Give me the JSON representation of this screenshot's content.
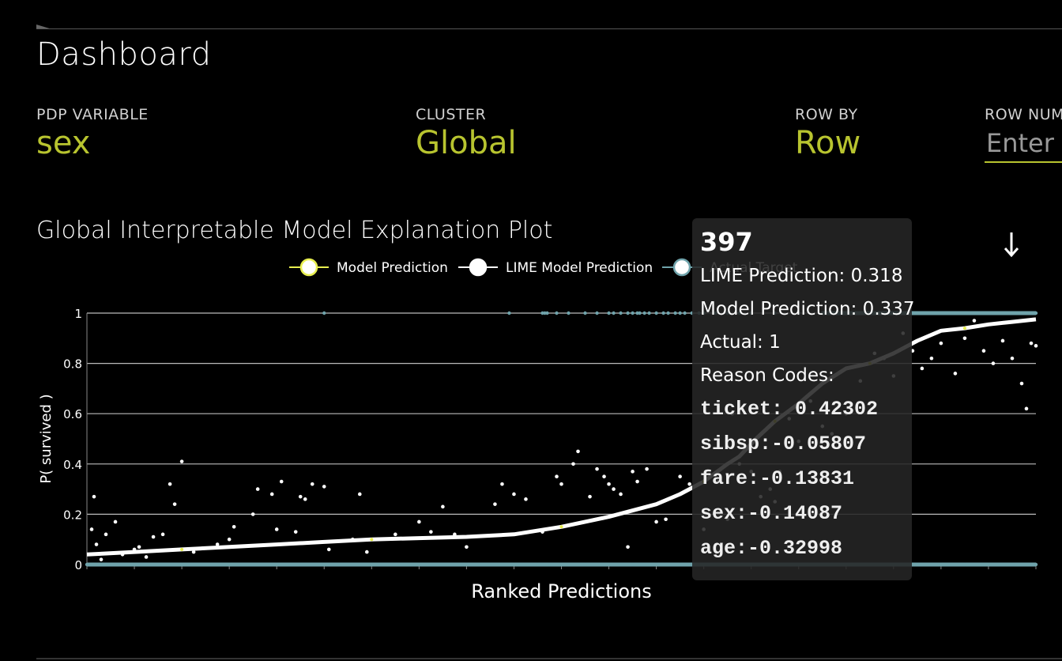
{
  "header": {
    "title": "Dashboard"
  },
  "controls": {
    "pdp_variable": {
      "label": "PDP VARIABLE",
      "value": "sex"
    },
    "cluster": {
      "label": "CLUSTER",
      "value": "Global"
    },
    "row_by": {
      "label": "ROW BY",
      "value": "Row"
    },
    "row_number": {
      "label": "ROW NUMBER",
      "placeholder": "Enter Row"
    }
  },
  "download_icon": "download-arrow-icon",
  "colors": {
    "accent": "#b8c42f",
    "model_prediction": "#e8ef4f",
    "lime_prediction": "#ffffff",
    "actual_target": "#6fa3ab",
    "grid": "#bbbbbb",
    "tooltip_bg": "#262626"
  },
  "tooltip": {
    "title": "397",
    "lime_prediction": "LIME Prediction: 0.318",
    "model_prediction": "Model Prediction: 0.337",
    "actual": "Actual: 1",
    "reason_codes_label": "Reason Codes:",
    "reason_codes": [
      "ticket: 0.42302",
      "sibsp:-0.05807",
      "fare:-0.13831",
      "sex:-0.14087",
      "age:-0.32998"
    ]
  },
  "chart_data": {
    "type": "scatter",
    "title": "Global Interpretable Model Explanation Plot",
    "xlabel": "Ranked Predictions",
    "ylabel": "P( survived )",
    "ylim": [
      0,
      1
    ],
    "yticks": [
      "0",
      "0.2",
      "0.4",
      "0.6",
      "0.8",
      "1"
    ],
    "grid": true,
    "legend_position": "top-center",
    "n_points": 400,
    "series": [
      {
        "name": "Model Prediction",
        "curve": [
          [
            0,
            0.04
          ],
          [
            20,
            0.05
          ],
          [
            40,
            0.06
          ],
          [
            60,
            0.07
          ],
          [
            80,
            0.08
          ],
          [
            100,
            0.09
          ],
          [
            120,
            0.1
          ],
          [
            140,
            0.105
          ],
          [
            160,
            0.11
          ],
          [
            180,
            0.12
          ],
          [
            200,
            0.15
          ],
          [
            220,
            0.19
          ],
          [
            240,
            0.24
          ],
          [
            250,
            0.28
          ],
          [
            260,
            0.33
          ],
          [
            270,
            0.4
          ],
          [
            275,
            0.43
          ],
          [
            282,
            0.5
          ],
          [
            290,
            0.57
          ],
          [
            300,
            0.64
          ],
          [
            310,
            0.72
          ],
          [
            320,
            0.78
          ],
          [
            330,
            0.8
          ],
          [
            340,
            0.84
          ],
          [
            350,
            0.89
          ],
          [
            360,
            0.93
          ],
          [
            370,
            0.94
          ],
          [
            380,
            0.955
          ],
          [
            390,
            0.965
          ],
          [
            400,
            0.975
          ]
        ]
      },
      {
        "name": "LIME Model Prediction",
        "scatter": [
          [
            2,
            0.14
          ],
          [
            3,
            0.27
          ],
          [
            4,
            0.08
          ],
          [
            6,
            0.02
          ],
          [
            8,
            0.12
          ],
          [
            12,
            0.17
          ],
          [
            15,
            0.04
          ],
          [
            20,
            0.06
          ],
          [
            22,
            0.07
          ],
          [
            25,
            0.03
          ],
          [
            28,
            0.11
          ],
          [
            32,
            0.12
          ],
          [
            35,
            0.32
          ],
          [
            37,
            0.24
          ],
          [
            40,
            0.41
          ],
          [
            45,
            0.05
          ],
          [
            55,
            0.08
          ],
          [
            60,
            0.1
          ],
          [
            62,
            0.15
          ],
          [
            70,
            0.2
          ],
          [
            72,
            0.3
          ],
          [
            78,
            0.28
          ],
          [
            80,
            0.14
          ],
          [
            82,
            0.33
          ],
          [
            88,
            0.13
          ],
          [
            90,
            0.27
          ],
          [
            92,
            0.26
          ],
          [
            95,
            0.32
          ],
          [
            100,
            0.31
          ],
          [
            102,
            0.06
          ],
          [
            112,
            0.1
          ],
          [
            115,
            0.28
          ],
          [
            118,
            0.05
          ],
          [
            130,
            0.12
          ],
          [
            140,
            0.17
          ],
          [
            145,
            0.13
          ],
          [
            150,
            0.23
          ],
          [
            155,
            0.12
          ],
          [
            160,
            0.07
          ],
          [
            172,
            0.24
          ],
          [
            175,
            0.32
          ],
          [
            180,
            0.28
          ],
          [
            185,
            0.26
          ],
          [
            192,
            0.13
          ],
          [
            198,
            0.35
          ],
          [
            200,
            0.32
          ],
          [
            205,
            0.4
          ],
          [
            207,
            0.45
          ],
          [
            212,
            0.27
          ],
          [
            215,
            0.38
          ],
          [
            218,
            0.35
          ],
          [
            220,
            0.32
          ],
          [
            222,
            0.3
          ],
          [
            225,
            0.28
          ],
          [
            228,
            0.07
          ],
          [
            230,
            0.37
          ],
          [
            232,
            0.33
          ],
          [
            236,
            0.38
          ],
          [
            240,
            0.17
          ],
          [
            244,
            0.18
          ],
          [
            250,
            0.35
          ],
          [
            254,
            0.32
          ],
          [
            260,
            0.14
          ],
          [
            266,
            0.33
          ],
          [
            270,
            0.18
          ],
          [
            272,
            0.6
          ],
          [
            275,
            0.4
          ],
          [
            280,
            0.37
          ],
          [
            284,
            0.27
          ],
          [
            288,
            0.3
          ],
          [
            290,
            0.25
          ],
          [
            292,
            0.37
          ],
          [
            296,
            0.58
          ],
          [
            300,
            0.49
          ],
          [
            305,
            0.65
          ],
          [
            310,
            0.55
          ],
          [
            314,
            0.52
          ],
          [
            320,
            0.6
          ],
          [
            326,
            0.73
          ],
          [
            332,
            0.84
          ],
          [
            336,
            0.82
          ],
          [
            340,
            0.75
          ],
          [
            344,
            0.92
          ],
          [
            348,
            0.85
          ],
          [
            352,
            0.78
          ],
          [
            356,
            0.82
          ],
          [
            360,
            0.88
          ],
          [
            366,
            0.76
          ],
          [
            370,
            0.9
          ],
          [
            374,
            0.97
          ],
          [
            378,
            0.85
          ],
          [
            382,
            0.8
          ],
          [
            386,
            0.89
          ],
          [
            390,
            0.82
          ],
          [
            394,
            0.72
          ],
          [
            396,
            0.62
          ],
          [
            398,
            0.88
          ],
          [
            400,
            0.87
          ]
        ]
      },
      {
        "name": "Actual Target",
        "ones": [
          100,
          178,
          192,
          193,
          194,
          198,
          203,
          210,
          215,
          220,
          222,
          225,
          228,
          230,
          232,
          233,
          235,
          237,
          240,
          243,
          245,
          248,
          250,
          252,
          255,
          258,
          260,
          265,
          270,
          275,
          280,
          290,
          300,
          310,
          320,
          330,
          340,
          350,
          360,
          370,
          380,
          390,
          400
        ],
        "zeros": [
          0,
          20,
          40,
          60,
          80,
          100,
          120,
          140,
          160,
          180,
          190,
          195,
          200,
          210,
          220,
          230,
          240,
          250,
          260,
          270,
          280,
          290,
          300,
          310,
          320,
          330,
          340,
          350,
          360,
          370,
          380,
          390,
          400
        ]
      }
    ]
  }
}
